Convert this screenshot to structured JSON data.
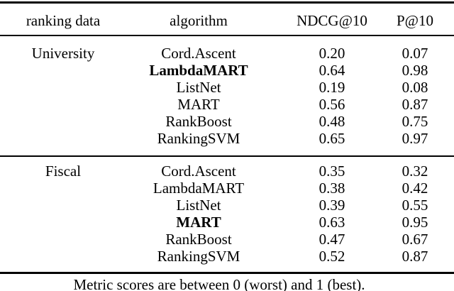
{
  "table": {
    "columns": [
      "ranking data",
      "algorithm",
      "NDCG@10",
      "P@10"
    ],
    "groups": [
      {
        "id": "university",
        "dataset": "University",
        "rows": [
          {
            "algorithm": "Cord.Ascent",
            "ndcg10": "0.20",
            "p10": "0.07",
            "bold": false
          },
          {
            "algorithm": "LambdaMART",
            "ndcg10": "0.64",
            "p10": "0.98",
            "bold": true
          },
          {
            "algorithm": "ListNet",
            "ndcg10": "0.19",
            "p10": "0.08",
            "bold": false
          },
          {
            "algorithm": "MART",
            "ndcg10": "0.56",
            "p10": "0.87",
            "bold": false
          },
          {
            "algorithm": "RankBoost",
            "ndcg10": "0.48",
            "p10": "0.75",
            "bold": false
          },
          {
            "algorithm": "RankingSVM",
            "ndcg10": "0.65",
            "p10": "0.97",
            "bold": false
          }
        ]
      },
      {
        "id": "fiscal",
        "dataset": "Fiscal",
        "rows": [
          {
            "algorithm": "Cord.Ascent",
            "ndcg10": "0.35",
            "p10": "0.32",
            "bold": false
          },
          {
            "algorithm": "LambdaMART",
            "ndcg10": "0.38",
            "p10": "0.42",
            "bold": false
          },
          {
            "algorithm": "ListNet",
            "ndcg10": "0.39",
            "p10": "0.55",
            "bold": false
          },
          {
            "algorithm": "MART",
            "ndcg10": "0.63",
            "p10": "0.95",
            "bold": true
          },
          {
            "algorithm": "RankBoost",
            "ndcg10": "0.47",
            "p10": "0.67",
            "bold": false
          },
          {
            "algorithm": "RankingSVM",
            "ndcg10": "0.52",
            "p10": "0.87",
            "bold": false
          }
        ]
      }
    ],
    "footnote": "Metric scores are between 0 (worst) and 1 (best)."
  },
  "colors": {
    "background": "#ffffff",
    "text": "#000000",
    "rule": "#000000"
  }
}
